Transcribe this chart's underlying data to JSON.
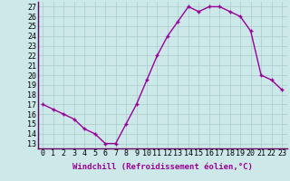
{
  "x": [
    0,
    1,
    2,
    3,
    4,
    5,
    6,
    7,
    8,
    9,
    10,
    11,
    12,
    13,
    14,
    15,
    16,
    17,
    18,
    19,
    20,
    21,
    22,
    23
  ],
  "y": [
    17.0,
    16.5,
    16.0,
    15.5,
    14.5,
    14.0,
    13.0,
    13.0,
    15.0,
    17.0,
    19.5,
    22.0,
    24.0,
    25.5,
    27.0,
    26.5,
    27.0,
    27.0,
    26.5,
    26.0,
    24.5,
    20.0,
    19.5,
    18.5
  ],
  "line_color": "#990099",
  "marker": "+",
  "marker_size": 3,
  "bg_color": "#cce8e8",
  "grid_color": "#aacccc",
  "xlabel": "Windchill (Refroidissement éolien,°C)",
  "ylabel_ticks": [
    13,
    14,
    15,
    16,
    17,
    18,
    19,
    20,
    21,
    22,
    23,
    24,
    25,
    26,
    27
  ],
  "xlim": [
    -0.5,
    23.5
  ],
  "ylim": [
    12.5,
    27.5
  ],
  "xticks": [
    0,
    1,
    2,
    3,
    4,
    5,
    6,
    7,
    8,
    9,
    10,
    11,
    12,
    13,
    14,
    15,
    16,
    17,
    18,
    19,
    20,
    21,
    22,
    23
  ],
  "xlabel_fontsize": 6.5,
  "tick_fontsize": 6,
  "line_width": 1.0
}
